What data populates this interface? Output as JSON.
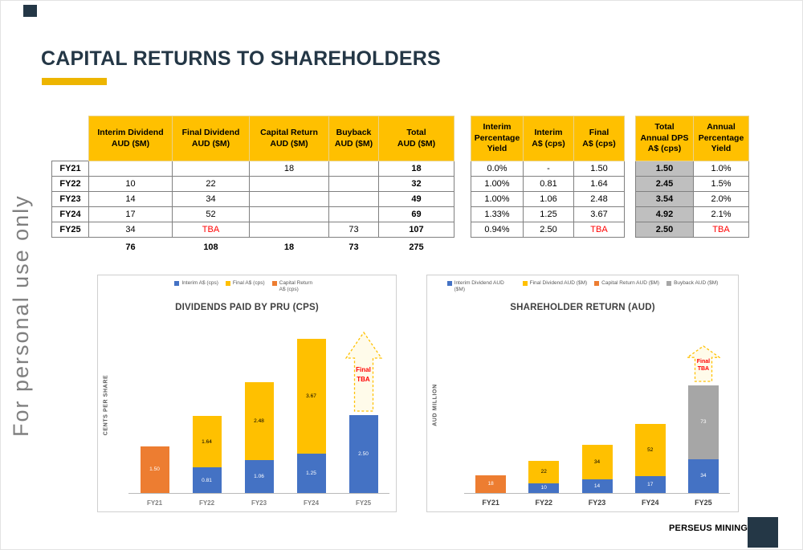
{
  "slide": {
    "title": "CAPITAL RETURNS TO SHAREHOLDERS",
    "watermark": "For personal use only",
    "brand": "PERSEUS MINING"
  },
  "colors": {
    "accent_yellow": "#FFC000",
    "accent_bar": "#EDB500",
    "interim_blue": "#4472C4",
    "final_yellow": "#FFC000",
    "capital_orange": "#ED7D31",
    "buyback_gray": "#A6A6A6",
    "navy": "#243746",
    "tba_red": "#FF0000",
    "dps_cell_gray": "#BFBFBF"
  },
  "capital_table": {
    "headers": [
      [
        "Interim Dividend",
        "AUD ($M)"
      ],
      [
        "Final Dividend",
        "AUD ($M)"
      ],
      [
        "Capital Return",
        "AUD ($M)"
      ],
      [
        "Buyback",
        "AUD ($M)"
      ],
      [
        "Total",
        "AUD ($M)"
      ]
    ],
    "rows": [
      {
        "label": "FY21",
        "cells": [
          "",
          "",
          "18",
          "",
          "18"
        ]
      },
      {
        "label": "FY22",
        "cells": [
          "10",
          "22",
          "",
          "",
          "32"
        ]
      },
      {
        "label": "FY23",
        "cells": [
          "14",
          "34",
          "",
          "",
          "49"
        ]
      },
      {
        "label": "FY24",
        "cells": [
          "17",
          "52",
          "",
          "",
          "69"
        ]
      },
      {
        "label": "FY25",
        "cells": [
          "34",
          "TBA",
          "",
          "73",
          "107"
        ]
      }
    ],
    "totals": [
      "76",
      "108",
      "18",
      "73",
      "275"
    ]
  },
  "yield_table": {
    "headers": [
      [
        "Interim",
        "Percentage",
        "Yield"
      ],
      [
        "Interim",
        "A$ (cps)"
      ],
      [
        "Final",
        "A$ (cps)"
      ]
    ],
    "rows": [
      [
        "0.0%",
        "-",
        "1.50"
      ],
      [
        "1.00%",
        "0.81",
        "1.64"
      ],
      [
        "1.00%",
        "1.06",
        "2.48"
      ],
      [
        "1.33%",
        "1.25",
        "3.67"
      ],
      [
        "0.94%",
        "2.50",
        "TBA"
      ]
    ]
  },
  "dps_table": {
    "headers": [
      [
        "Total",
        "Annual DPS",
        "A$ (cps)"
      ],
      [
        "Annual",
        "Percentage",
        "Yield"
      ]
    ],
    "rows": [
      [
        "1.50",
        "1.0%"
      ],
      [
        "2.45",
        "1.5%"
      ],
      [
        "3.54",
        "2.0%"
      ],
      [
        "4.92",
        "2.1%"
      ],
      [
        "2.50",
        "TBA"
      ]
    ]
  },
  "chart_data": [
    {
      "type": "bar",
      "stacked": true,
      "title": "DIVIDENDS PAID BY PRU (CPS)",
      "xlabel": "",
      "ylabel": "CENTS PER SHARE",
      "categories": [
        "FY21",
        "FY22",
        "FY23",
        "FY24",
        "FY25"
      ],
      "series": [
        {
          "name": "Interim A$ (cps)",
          "color": "#4472C4",
          "values": [
            0,
            0.81,
            1.06,
            1.25,
            2.5
          ]
        },
        {
          "name": "Final A$ (cps)",
          "color": "#FFC000",
          "values": [
            0,
            1.64,
            2.48,
            3.67,
            0
          ]
        },
        {
          "name": "Capital Return A$ (cps)",
          "color": "#ED7D31",
          "values": [
            1.5,
            0,
            0,
            0,
            0
          ]
        }
      ],
      "annotation": {
        "category": "FY25",
        "lines": [
          "Final",
          "TBA"
        ]
      },
      "legend_position": "top",
      "grid": false,
      "ylim": [
        0,
        5.5
      ]
    },
    {
      "type": "bar",
      "stacked": true,
      "title": "SHAREHOLDER RETURN (AUD)",
      "xlabel": "",
      "ylabel": "AUD MILLION",
      "categories": [
        "FY21",
        "FY22",
        "FY23",
        "FY24",
        "FY25"
      ],
      "series": [
        {
          "name": "Interim Dividend AUD ($M)",
          "color": "#4472C4",
          "values": [
            0,
            10,
            14,
            17,
            34
          ]
        },
        {
          "name": "Final Dividend AUD ($M)",
          "color": "#FFC000",
          "values": [
            0,
            22,
            34,
            52,
            0
          ]
        },
        {
          "name": "Capital Return AUD ($M)",
          "color": "#ED7D31",
          "values": [
            18,
            0,
            0,
            0,
            0
          ]
        },
        {
          "name": "Buyback AUD ($M)",
          "color": "#A6A6A6",
          "values": [
            0,
            0,
            0,
            0,
            73
          ]
        }
      ],
      "annotation": {
        "category": "FY25",
        "lines": [
          "Final",
          "TBA"
        ]
      },
      "legend_position": "top",
      "grid": false,
      "ylim": [
        0,
        145
      ]
    }
  ]
}
